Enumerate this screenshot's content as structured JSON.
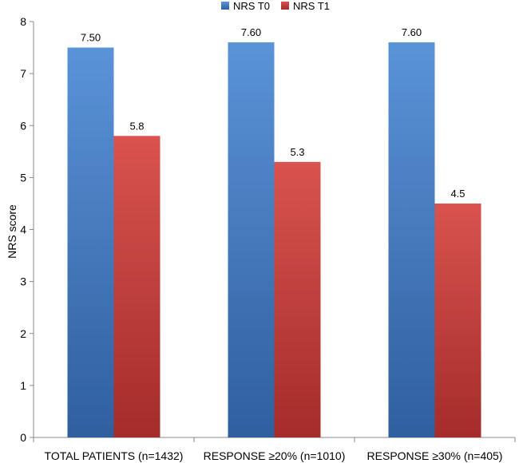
{
  "colors": {
    "t0_light": "#5b93d8",
    "t0_dark": "#2f5f9e",
    "t1_light": "#d9534f",
    "t1_dark": "#a42c2a"
  },
  "chart_data": {
    "type": "bar",
    "title": "",
    "xlabel": "",
    "ylabel": "NRS score",
    "ylim": [
      0,
      8
    ],
    "yticks": [
      "0",
      "1",
      "2",
      "3",
      "4",
      "5",
      "6",
      "7",
      "8"
    ],
    "grid": false,
    "legend_position": "top-center",
    "categories": [
      "TOTAL PATIENTS (n=1432)",
      "RESPONSE ≥20% (n=1010)",
      "RESPONSE ≥30%  (n=405)"
    ],
    "series": [
      {
        "name": "NRS T0",
        "values": [
          7.5,
          7.6,
          7.6
        ],
        "labels": [
          "7.50",
          "7.60",
          "7.60"
        ]
      },
      {
        "name": "NRS T1",
        "values": [
          5.8,
          5.3,
          4.5
        ],
        "labels": [
          "5.8",
          "5.3",
          "4.5"
        ]
      }
    ]
  }
}
